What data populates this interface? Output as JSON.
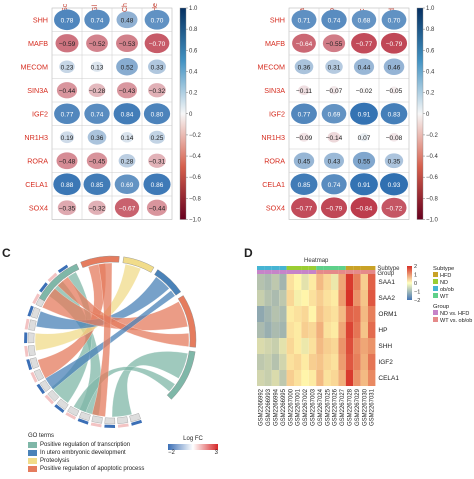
{
  "panel_c": {
    "letter": "C"
  },
  "panel_d": {
    "letter": "D"
  },
  "corr_left": {
    "genes": [
      "SHH",
      "MAFB",
      "MECOM",
      "SIN3A",
      "IGF2",
      "NR1H3",
      "RORA",
      "CELA1",
      "SOX4"
    ],
    "cols": [
      "Sc",
      "Gl",
      "Ch",
      "He"
    ],
    "values": [
      [
        0.78,
        0.74,
        0.48,
        0.7
      ],
      [
        -0.59,
        -0.52,
        -0.53,
        -0.7
      ],
      [
        0.23,
        0.13,
        0.52,
        0.33
      ],
      [
        -0.44,
        -0.28,
        -0.43,
        -0.32
      ],
      [
        0.77,
        0.74,
        0.84,
        0.8
      ],
      [
        0.19,
        0.36,
        0.14,
        0.25
      ],
      [
        -0.48,
        -0.45,
        0.28,
        -0.31
      ],
      [
        0.88,
        0.85,
        0.69,
        0.86
      ],
      [
        -0.35,
        -0.32,
        -0.67,
        -0.44
      ]
    ]
  },
  "corr_right": {
    "genes": [
      "SHH",
      "MAFB",
      "MECOM",
      "SIN3A",
      "IGF2",
      "NR1H3",
      "RORA",
      "CELA1",
      "SOX4"
    ],
    "cols": [
      "a",
      "b",
      "c",
      "d"
    ],
    "values": [
      [
        0.71,
        0.74,
        0.68,
        0.7
      ],
      [
        -0.64,
        -0.55,
        -0.77,
        -0.79
      ],
      [
        0.36,
        0.31,
        0.44,
        0.46
      ],
      [
        -0.11,
        -0.07,
        -0.02,
        -0.05
      ],
      [
        0.77,
        0.69,
        0.91,
        0.83
      ],
      [
        -0.09,
        -0.14,
        0.07,
        -0.08
      ],
      [
        0.45,
        0.43,
        0.55,
        0.35
      ],
      [
        0.85,
        0.74,
        0.91,
        0.93
      ],
      [
        -0.77,
        -0.79,
        -0.84,
        -0.72
      ]
    ]
  },
  "colorbar_ticks": [
    "1.0",
    "0.8",
    "0.6",
    "0.4",
    "0.2",
    "0",
    "−0.2",
    "−0.4",
    "−0.6",
    "−0.8",
    "−1.0"
  ],
  "chord": {
    "go_title": "GO terms",
    "go_terms": [
      {
        "label": "Positive regulation of transcription",
        "color": "#7fb7a8"
      },
      {
        "label": "In utero embryonic development",
        "color": "#4a82b8"
      },
      {
        "label": "Proteolysis",
        "color": "#f1dc8a"
      },
      {
        "label": "Positive regulation of apoptotic process",
        "color": "#e57c5e"
      }
    ],
    "logfc_title": "Log FC",
    "logfc_min": "−2",
    "logfc_max": "3"
  },
  "heatmap": {
    "title": "Heatmap",
    "rows": [
      "SAA1",
      "SAA2",
      "ORM1",
      "HP",
      "SHH",
      "IGF2",
      "CELA1"
    ],
    "samples": [
      "GSM2266992",
      "GSM2266993",
      "GSM2266994",
      "GSM2266995",
      "GSM2267000",
      "GSM2267001",
      "GSM2267002",
      "GSM2267003",
      "GSM2267024",
      "GSM2267025",
      "GSM2267026",
      "GSM2267027",
      "GSM2267028",
      "GSM2267029",
      "GSM2267030",
      "GSM2267031"
    ],
    "subtype_label": "Subtype",
    "group_label": "Group",
    "legend_subtype_title": "Subtype",
    "subtype_items": [
      {
        "label": "HFD",
        "color": "#c9a227"
      },
      {
        "label": "ND",
        "color": "#9acd32"
      },
      {
        "label": "ob/ob",
        "color": "#46b4d3"
      },
      {
        "label": "WT",
        "color": "#5fd08a"
      }
    ],
    "legend_group_title": "Group",
    "group_items": [
      {
        "label": "ND vs. HFD",
        "color": "#c684c9"
      },
      {
        "label": "WT vs. ob/ob",
        "color": "#e58a8a"
      }
    ],
    "scale_ticks": [
      "2",
      "1",
      "0",
      "−1",
      "−2"
    ],
    "values": [
      [
        -0.8,
        -0.9,
        -0.7,
        -1.0,
        0.2,
        0.0,
        -0.3,
        0.1,
        0.6,
        0.3,
        -0.2,
        0.8,
        1.9,
        1.2,
        0.4,
        1.5
      ],
      [
        -0.6,
        -0.8,
        -0.9,
        -0.7,
        0.3,
        -0.1,
        0.0,
        0.2,
        0.4,
        0.2,
        0.1,
        0.9,
        2.0,
        1.0,
        0.5,
        1.6
      ],
      [
        -1.2,
        -1.0,
        -0.8,
        -0.9,
        0.1,
        0.2,
        0.3,
        0.0,
        0.5,
        0.3,
        0.2,
        0.6,
        1.5,
        1.4,
        0.6,
        1.2
      ],
      [
        -0.9,
        -1.1,
        -0.9,
        -1.0,
        0.2,
        0.1,
        0.4,
        0.3,
        0.7,
        0.2,
        0.1,
        0.8,
        1.8,
        1.3,
        0.5,
        1.4
      ],
      [
        -0.4,
        -0.5,
        -0.6,
        -0.3,
        0.3,
        0.1,
        -0.2,
        0.2,
        0.6,
        0.4,
        0.3,
        1.0,
        1.7,
        1.1,
        0.8,
        1.0
      ],
      [
        -0.7,
        -0.6,
        -0.8,
        -0.5,
        0.2,
        0.3,
        0.1,
        0.4,
        0.5,
        0.3,
        0.2,
        0.9,
        1.6,
        1.2,
        0.7,
        1.3
      ],
      [
        -0.5,
        -0.6,
        -0.4,
        -0.7,
        0.4,
        0.2,
        0.0,
        0.1,
        0.6,
        0.2,
        0.3,
        0.7,
        1.9,
        1.0,
        0.6,
        1.1
      ]
    ]
  }
}
